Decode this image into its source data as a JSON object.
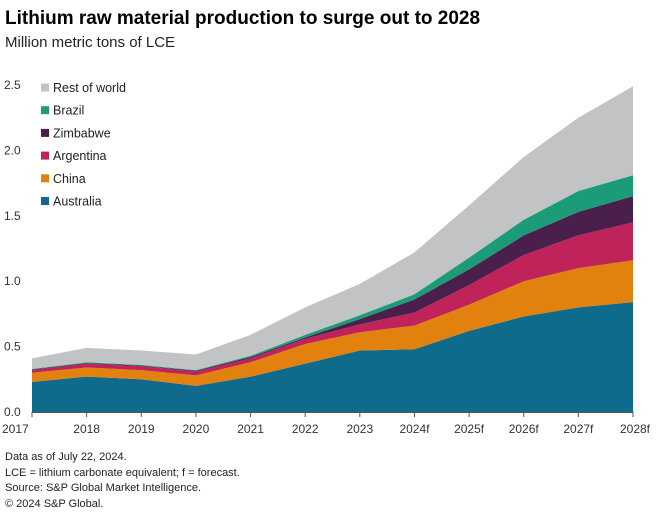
{
  "header": {
    "title": "Lithium raw material production to surge out to 2028",
    "subtitle": "Million metric tons of LCE"
  },
  "chart_data": {
    "type": "area",
    "stacked": true,
    "categories": [
      "2017",
      "2018",
      "2019",
      "2020",
      "2021",
      "2022",
      "2023",
      "2024f",
      "2025f",
      "2026f",
      "2027f",
      "2028f"
    ],
    "ylim": [
      0,
      2.5
    ],
    "yticks": [
      "0.0",
      "0.5",
      "1.0",
      "1.5",
      "2.0",
      "2.5"
    ],
    "grid": false,
    "legend_position": "top-left",
    "series": [
      {
        "name": "Australia",
        "color": "#0e6b8b",
        "values": [
          0.23,
          0.27,
          0.25,
          0.2,
          0.27,
          0.37,
          0.47,
          0.48,
          0.62,
          0.73,
          0.8,
          0.84
        ]
      },
      {
        "name": "China",
        "color": "#e3810f",
        "values": [
          0.07,
          0.07,
          0.07,
          0.08,
          0.11,
          0.15,
          0.14,
          0.18,
          0.2,
          0.27,
          0.3,
          0.32
        ]
      },
      {
        "name": "Argentina",
        "color": "#c0235a",
        "values": [
          0.02,
          0.03,
          0.03,
          0.03,
          0.03,
          0.04,
          0.06,
          0.1,
          0.15,
          0.2,
          0.25,
          0.29
        ]
      },
      {
        "name": "Zimbabwe",
        "color": "#4a1f4b",
        "values": [
          0.005,
          0.005,
          0.005,
          0.005,
          0.01,
          0.01,
          0.04,
          0.1,
          0.12,
          0.15,
          0.18,
          0.2
        ]
      },
      {
        "name": "Brazil",
        "color": "#1c9b78",
        "values": [
          0.005,
          0.005,
          0.005,
          0.005,
          0.01,
          0.02,
          0.03,
          0.04,
          0.09,
          0.12,
          0.16,
          0.16
        ]
      },
      {
        "name": "Rest of world",
        "color": "#c2c3c5",
        "values": [
          0.08,
          0.11,
          0.11,
          0.12,
          0.16,
          0.21,
          0.24,
          0.32,
          0.4,
          0.48,
          0.56,
          0.68
        ]
      }
    ]
  },
  "footnotes": {
    "line1": "Data as of July 22, 2024.",
    "line2": "LCE = lithium carbonate equivalent; f = forecast.",
    "line3": "Source: S&P Global Market Intelligence.",
    "line4": "© 2024 S&P Global."
  }
}
